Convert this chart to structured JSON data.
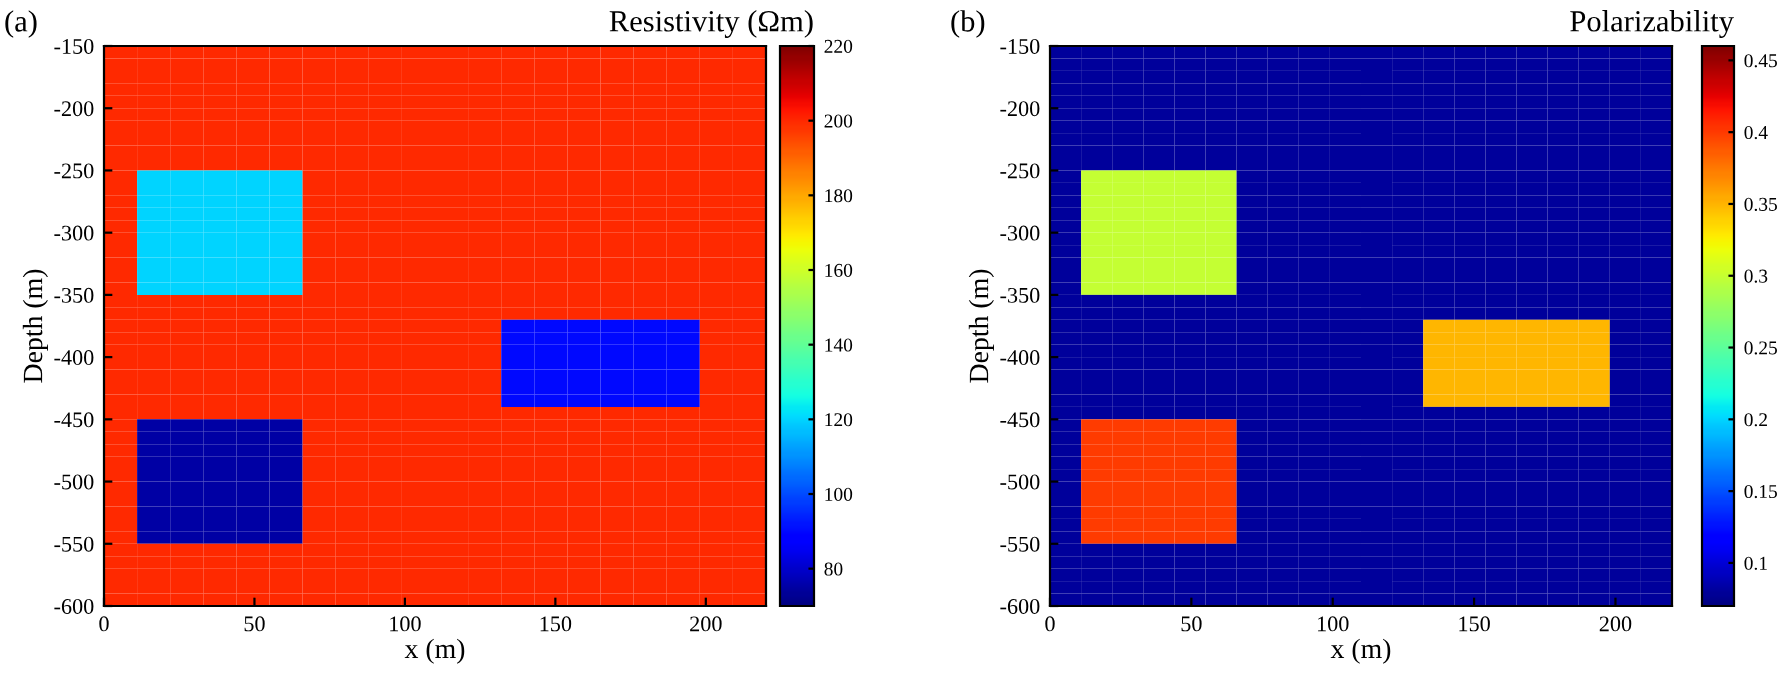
{
  "chart_data": [
    {
      "type": "heatmap",
      "title": "(a)",
      "xlabel": "x (m)",
      "ylabel": "Depth (m)",
      "clabel": "Resistivity (Ωm)",
      "x": [
        5.5,
        16.5,
        27.5,
        38.5,
        49.5,
        60.5,
        71.5,
        82.5,
        93.5,
        104.5,
        115.5,
        126.5,
        137.5,
        148.5,
        159.5,
        170.5,
        181.5,
        192.5,
        203.5,
        214.5
      ],
      "y": [
        -155,
        -165,
        -175,
        -185,
        -195,
        -205,
        -215,
        -225,
        -235,
        -245,
        -255,
        -265,
        -275,
        -285,
        -295,
        -305,
        -315,
        -325,
        -335,
        -345,
        -355,
        -365,
        -375,
        -385,
        -395,
        -405,
        -415,
        -425,
        -435,
        -445,
        -455,
        -465,
        -475,
        -485,
        -495,
        -505,
        -515,
        -525,
        -535,
        -545,
        -555,
        -565,
        -575,
        -585,
        -595
      ],
      "cells": [
        [
          200,
          200,
          200,
          200,
          200,
          200,
          200,
          200,
          200,
          200,
          200,
          200,
          200,
          200,
          200,
          200,
          200,
          200,
          200,
          200
        ],
        [
          200,
          200,
          200,
          200,
          200,
          200,
          200,
          200,
          200,
          200,
          200,
          200,
          200,
          200,
          200,
          200,
          200,
          200,
          200,
          200
        ],
        [
          200,
          200,
          200,
          200,
          200,
          200,
          200,
          200,
          200,
          200,
          200,
          200,
          200,
          200,
          200,
          200,
          200,
          200,
          200,
          200
        ],
        [
          200,
          200,
          200,
          200,
          200,
          200,
          200,
          200,
          200,
          200,
          200,
          200,
          200,
          200,
          200,
          200,
          200,
          200,
          200,
          200
        ],
        [
          200,
          200,
          200,
          200,
          200,
          200,
          200,
          200,
          200,
          200,
          200,
          200,
          200,
          200,
          200,
          200,
          200,
          200,
          200,
          200
        ],
        [
          200,
          200,
          200,
          200,
          200,
          200,
          200,
          200,
          200,
          200,
          200,
          200,
          200,
          200,
          200,
          200,
          200,
          200,
          200,
          200
        ],
        [
          200,
          200,
          200,
          200,
          200,
          200,
          200,
          200,
          200,
          200,
          200,
          200,
          200,
          200,
          200,
          200,
          200,
          200,
          200,
          200
        ],
        [
          200,
          200,
          200,
          200,
          200,
          200,
          200,
          200,
          200,
          200,
          200,
          200,
          200,
          200,
          200,
          200,
          200,
          200,
          200,
          200
        ],
        [
          200,
          200,
          200,
          200,
          200,
          200,
          200,
          200,
          200,
          200,
          200,
          200,
          200,
          200,
          200,
          200,
          200,
          200,
          200,
          200
        ],
        [
          200,
          200,
          200,
          200,
          200,
          200,
          200,
          200,
          200,
          200,
          200,
          200,
          200,
          200,
          200,
          200,
          200,
          200,
          200,
          200
        ],
        [
          200,
          120,
          120,
          120,
          120,
          120,
          200,
          200,
          200,
          200,
          200,
          200,
          200,
          200,
          200,
          200,
          200,
          200,
          200,
          200
        ],
        [
          200,
          120,
          120,
          120,
          120,
          120,
          200,
          200,
          200,
          200,
          200,
          200,
          200,
          200,
          200,
          200,
          200,
          200,
          200,
          200
        ],
        [
          200,
          120,
          120,
          120,
          120,
          120,
          200,
          200,
          200,
          200,
          200,
          200,
          200,
          200,
          200,
          200,
          200,
          200,
          200,
          200
        ],
        [
          200,
          120,
          120,
          120,
          120,
          120,
          200,
          200,
          200,
          200,
          200,
          200,
          200,
          200,
          200,
          200,
          200,
          200,
          200,
          200
        ],
        [
          200,
          120,
          120,
          120,
          120,
          120,
          200,
          200,
          200,
          200,
          200,
          200,
          200,
          200,
          200,
          200,
          200,
          200,
          200,
          200
        ],
        [
          200,
          120,
          120,
          120,
          120,
          120,
          200,
          200,
          200,
          200,
          200,
          200,
          200,
          200,
          200,
          200,
          200,
          200,
          200,
          200
        ],
        [
          200,
          120,
          120,
          120,
          120,
          120,
          200,
          200,
          200,
          200,
          200,
          200,
          200,
          200,
          200,
          200,
          200,
          200,
          200,
          200
        ],
        [
          200,
          120,
          120,
          120,
          120,
          120,
          200,
          200,
          200,
          200,
          200,
          200,
          200,
          200,
          200,
          200,
          200,
          200,
          200,
          200
        ],
        [
          200,
          120,
          120,
          120,
          120,
          120,
          200,
          200,
          200,
          200,
          200,
          200,
          200,
          200,
          200,
          200,
          200,
          200,
          200,
          200
        ],
        [
          200,
          120,
          120,
          120,
          120,
          120,
          200,
          200,
          200,
          200,
          200,
          200,
          200,
          200,
          200,
          200,
          200,
          200,
          200,
          200
        ],
        [
          200,
          200,
          200,
          200,
          200,
          200,
          200,
          200,
          200,
          200,
          200,
          200,
          200,
          200,
          200,
          200,
          200,
          200,
          200,
          200
        ],
        [
          200,
          200,
          200,
          200,
          200,
          200,
          200,
          200,
          200,
          200,
          200,
          200,
          200,
          200,
          200,
          200,
          200,
          200,
          200,
          200
        ],
        [
          200,
          200,
          200,
          200,
          200,
          200,
          200,
          200,
          200,
          200,
          200,
          200,
          90,
          90,
          90,
          90,
          90,
          90,
          200,
          200
        ],
        [
          200,
          200,
          200,
          200,
          200,
          200,
          200,
          200,
          200,
          200,
          200,
          200,
          90,
          90,
          90,
          90,
          90,
          90,
          200,
          200
        ],
        [
          200,
          200,
          200,
          200,
          200,
          200,
          200,
          200,
          200,
          200,
          200,
          200,
          90,
          90,
          90,
          90,
          90,
          90,
          200,
          200
        ],
        [
          200,
          200,
          200,
          200,
          200,
          200,
          200,
          200,
          200,
          200,
          200,
          200,
          90,
          90,
          90,
          90,
          90,
          90,
          200,
          200
        ],
        [
          200,
          200,
          200,
          200,
          200,
          200,
          200,
          200,
          200,
          200,
          200,
          200,
          90,
          90,
          90,
          90,
          90,
          90,
          200,
          200
        ],
        [
          200,
          200,
          200,
          200,
          200,
          200,
          200,
          200,
          200,
          200,
          200,
          200,
          90,
          90,
          90,
          90,
          90,
          90,
          200,
          200
        ],
        [
          200,
          200,
          200,
          200,
          200,
          200,
          200,
          200,
          200,
          200,
          200,
          200,
          90,
          90,
          90,
          90,
          90,
          90,
          200,
          200
        ],
        [
          200,
          200,
          200,
          200,
          200,
          200,
          200,
          200,
          200,
          200,
          200,
          200,
          200,
          200,
          200,
          200,
          200,
          200,
          200,
          200
        ],
        [
          200,
          75,
          75,
          75,
          75,
          75,
          200,
          200,
          200,
          200,
          200,
          200,
          200,
          200,
          200,
          200,
          200,
          200,
          200,
          200
        ],
        [
          200,
          75,
          75,
          75,
          75,
          75,
          200,
          200,
          200,
          200,
          200,
          200,
          200,
          200,
          200,
          200,
          200,
          200,
          200,
          200
        ],
        [
          200,
          75,
          75,
          75,
          75,
          75,
          200,
          200,
          200,
          200,
          200,
          200,
          200,
          200,
          200,
          200,
          200,
          200,
          200,
          200
        ],
        [
          200,
          75,
          75,
          75,
          75,
          75,
          200,
          200,
          200,
          200,
          200,
          200,
          200,
          200,
          200,
          200,
          200,
          200,
          200,
          200
        ],
        [
          200,
          75,
          75,
          75,
          75,
          75,
          200,
          200,
          200,
          200,
          200,
          200,
          200,
          200,
          200,
          200,
          200,
          200,
          200,
          200
        ],
        [
          200,
          75,
          75,
          75,
          75,
          75,
          200,
          200,
          200,
          200,
          200,
          200,
          200,
          200,
          200,
          200,
          200,
          200,
          200,
          200
        ],
        [
          200,
          75,
          75,
          75,
          75,
          75,
          200,
          200,
          200,
          200,
          200,
          200,
          200,
          200,
          200,
          200,
          200,
          200,
          200,
          200
        ],
        [
          200,
          75,
          75,
          75,
          75,
          75,
          200,
          200,
          200,
          200,
          200,
          200,
          200,
          200,
          200,
          200,
          200,
          200,
          200,
          200
        ],
        [
          200,
          75,
          75,
          75,
          75,
          75,
          200,
          200,
          200,
          200,
          200,
          200,
          200,
          200,
          200,
          200,
          200,
          200,
          200,
          200
        ],
        [
          200,
          75,
          75,
          75,
          75,
          75,
          200,
          200,
          200,
          200,
          200,
          200,
          200,
          200,
          200,
          200,
          200,
          200,
          200,
          200
        ],
        [
          200,
          200,
          200,
          200,
          200,
          200,
          200,
          200,
          200,
          200,
          200,
          200,
          200,
          200,
          200,
          200,
          200,
          200,
          200,
          200
        ],
        [
          200,
          200,
          200,
          200,
          200,
          200,
          200,
          200,
          200,
          200,
          200,
          200,
          200,
          200,
          200,
          200,
          200,
          200,
          200,
          200
        ],
        [
          200,
          200,
          200,
          200,
          200,
          200,
          200,
          200,
          200,
          200,
          200,
          200,
          200,
          200,
          200,
          200,
          200,
          200,
          200,
          200
        ],
        [
          200,
          200,
          200,
          200,
          200,
          200,
          200,
          200,
          200,
          200,
          200,
          200,
          200,
          200,
          200,
          200,
          200,
          200,
          200,
          200
        ],
        [
          200,
          200,
          200,
          200,
          200,
          200,
          200,
          200,
          200,
          200,
          200,
          200,
          200,
          200,
          200,
          200,
          200,
          200,
          200,
          200
        ]
      ],
      "clim": [
        70,
        220
      ],
      "cticks": [
        80,
        100,
        120,
        140,
        160,
        180,
        200,
        220
      ],
      "xlim": [
        0,
        220
      ],
      "ylim": [
        -600,
        -150
      ],
      "xticks": [
        0,
        50,
        100,
        150,
        200
      ],
      "yticks": [
        -600,
        -550,
        -500,
        -450,
        -400,
        -350,
        -300,
        -250,
        -200,
        -150
      ]
    },
    {
      "type": "heatmap",
      "title": "(b)",
      "xlabel": "x (m)",
      "ylabel": "Depth (m)",
      "clabel": "Polarizability",
      "x": [
        5.5,
        16.5,
        27.5,
        38.5,
        49.5,
        60.5,
        71.5,
        82.5,
        93.5,
        104.5,
        115.5,
        126.5,
        137.5,
        148.5,
        159.5,
        170.5,
        181.5,
        192.5,
        203.5,
        214.5
      ],
      "y": [
        -155,
        -165,
        -175,
        -185,
        -195,
        -205,
        -215,
        -225,
        -235,
        -245,
        -255,
        -265,
        -275,
        -285,
        -295,
        -305,
        -315,
        -325,
        -335,
        -345,
        -355,
        -365,
        -375,
        -385,
        -395,
        -405,
        -415,
        -425,
        -435,
        -445,
        -455,
        -465,
        -475,
        -485,
        -495,
        -505,
        -515,
        -525,
        -535,
        -545,
        -555,
        -565,
        -575,
        -585,
        -595
      ],
      "cells": [
        [
          0.08,
          0.08,
          0.08,
          0.08,
          0.08,
          0.08,
          0.08,
          0.08,
          0.08,
          0.08,
          0.08,
          0.08,
          0.08,
          0.08,
          0.08,
          0.08,
          0.08,
          0.08,
          0.08,
          0.08
        ],
        [
          0.08,
          0.08,
          0.08,
          0.08,
          0.08,
          0.08,
          0.08,
          0.08,
          0.08,
          0.08,
          0.08,
          0.08,
          0.08,
          0.08,
          0.08,
          0.08,
          0.08,
          0.08,
          0.08,
          0.08
        ],
        [
          0.08,
          0.08,
          0.08,
          0.08,
          0.08,
          0.08,
          0.08,
          0.08,
          0.08,
          0.08,
          0.08,
          0.08,
          0.08,
          0.08,
          0.08,
          0.08,
          0.08,
          0.08,
          0.08,
          0.08
        ],
        [
          0.08,
          0.08,
          0.08,
          0.08,
          0.08,
          0.08,
          0.08,
          0.08,
          0.08,
          0.08,
          0.08,
          0.08,
          0.08,
          0.08,
          0.08,
          0.08,
          0.08,
          0.08,
          0.08,
          0.08
        ],
        [
          0.08,
          0.08,
          0.08,
          0.08,
          0.08,
          0.08,
          0.08,
          0.08,
          0.08,
          0.08,
          0.08,
          0.08,
          0.08,
          0.08,
          0.08,
          0.08,
          0.08,
          0.08,
          0.08,
          0.08
        ],
        [
          0.08,
          0.08,
          0.08,
          0.08,
          0.08,
          0.08,
          0.08,
          0.08,
          0.08,
          0.08,
          0.08,
          0.08,
          0.08,
          0.08,
          0.08,
          0.08,
          0.08,
          0.08,
          0.08,
          0.08
        ],
        [
          0.08,
          0.08,
          0.08,
          0.08,
          0.08,
          0.08,
          0.08,
          0.08,
          0.08,
          0.08,
          0.08,
          0.08,
          0.08,
          0.08,
          0.08,
          0.08,
          0.08,
          0.08,
          0.08,
          0.08
        ],
        [
          0.08,
          0.08,
          0.08,
          0.08,
          0.08,
          0.08,
          0.08,
          0.08,
          0.08,
          0.08,
          0.08,
          0.08,
          0.08,
          0.08,
          0.08,
          0.08,
          0.08,
          0.08,
          0.08,
          0.08
        ],
        [
          0.08,
          0.08,
          0.08,
          0.08,
          0.08,
          0.08,
          0.08,
          0.08,
          0.08,
          0.08,
          0.08,
          0.08,
          0.08,
          0.08,
          0.08,
          0.08,
          0.08,
          0.08,
          0.08,
          0.08
        ],
        [
          0.08,
          0.08,
          0.08,
          0.08,
          0.08,
          0.08,
          0.08,
          0.08,
          0.08,
          0.08,
          0.08,
          0.08,
          0.08,
          0.08,
          0.08,
          0.08,
          0.08,
          0.08,
          0.08,
          0.08
        ],
        [
          0.08,
          0.3,
          0.3,
          0.3,
          0.3,
          0.3,
          0.08,
          0.08,
          0.08,
          0.08,
          0.08,
          0.08,
          0.08,
          0.08,
          0.08,
          0.08,
          0.08,
          0.08,
          0.08,
          0.08
        ],
        [
          0.08,
          0.3,
          0.3,
          0.3,
          0.3,
          0.3,
          0.08,
          0.08,
          0.08,
          0.08,
          0.08,
          0.08,
          0.08,
          0.08,
          0.08,
          0.08,
          0.08,
          0.08,
          0.08,
          0.08
        ],
        [
          0.08,
          0.3,
          0.3,
          0.3,
          0.3,
          0.3,
          0.08,
          0.08,
          0.08,
          0.08,
          0.08,
          0.08,
          0.08,
          0.08,
          0.08,
          0.08,
          0.08,
          0.08,
          0.08,
          0.08
        ],
        [
          0.08,
          0.3,
          0.3,
          0.3,
          0.3,
          0.3,
          0.08,
          0.08,
          0.08,
          0.08,
          0.08,
          0.08,
          0.08,
          0.08,
          0.08,
          0.08,
          0.08,
          0.08,
          0.08,
          0.08
        ],
        [
          0.08,
          0.3,
          0.3,
          0.3,
          0.3,
          0.3,
          0.08,
          0.08,
          0.08,
          0.08,
          0.08,
          0.08,
          0.08,
          0.08,
          0.08,
          0.08,
          0.08,
          0.08,
          0.08,
          0.08
        ],
        [
          0.08,
          0.3,
          0.3,
          0.3,
          0.3,
          0.3,
          0.08,
          0.08,
          0.08,
          0.08,
          0.08,
          0.08,
          0.08,
          0.08,
          0.08,
          0.08,
          0.08,
          0.08,
          0.08,
          0.08
        ],
        [
          0.08,
          0.3,
          0.3,
          0.3,
          0.3,
          0.3,
          0.08,
          0.08,
          0.08,
          0.08,
          0.08,
          0.08,
          0.08,
          0.08,
          0.08,
          0.08,
          0.08,
          0.08,
          0.08,
          0.08
        ],
        [
          0.08,
          0.3,
          0.3,
          0.3,
          0.3,
          0.3,
          0.08,
          0.08,
          0.08,
          0.08,
          0.08,
          0.08,
          0.08,
          0.08,
          0.08,
          0.08,
          0.08,
          0.08,
          0.08,
          0.08
        ],
        [
          0.08,
          0.3,
          0.3,
          0.3,
          0.3,
          0.3,
          0.08,
          0.08,
          0.08,
          0.08,
          0.08,
          0.08,
          0.08,
          0.08,
          0.08,
          0.08,
          0.08,
          0.08,
          0.08,
          0.08
        ],
        [
          0.08,
          0.3,
          0.3,
          0.3,
          0.3,
          0.3,
          0.08,
          0.08,
          0.08,
          0.08,
          0.08,
          0.08,
          0.08,
          0.08,
          0.08,
          0.08,
          0.08,
          0.08,
          0.08,
          0.08
        ],
        [
          0.08,
          0.08,
          0.08,
          0.08,
          0.08,
          0.08,
          0.08,
          0.08,
          0.08,
          0.08,
          0.08,
          0.08,
          0.08,
          0.08,
          0.08,
          0.08,
          0.08,
          0.08,
          0.08,
          0.08
        ],
        [
          0.08,
          0.08,
          0.08,
          0.08,
          0.08,
          0.08,
          0.08,
          0.08,
          0.08,
          0.08,
          0.08,
          0.08,
          0.08,
          0.08,
          0.08,
          0.08,
          0.08,
          0.08,
          0.08,
          0.08
        ],
        [
          0.08,
          0.08,
          0.08,
          0.08,
          0.08,
          0.08,
          0.08,
          0.08,
          0.08,
          0.08,
          0.08,
          0.08,
          0.35,
          0.35,
          0.35,
          0.35,
          0.35,
          0.35,
          0.08,
          0.08
        ],
        [
          0.08,
          0.08,
          0.08,
          0.08,
          0.08,
          0.08,
          0.08,
          0.08,
          0.08,
          0.08,
          0.08,
          0.08,
          0.35,
          0.35,
          0.35,
          0.35,
          0.35,
          0.35,
          0.08,
          0.08
        ],
        [
          0.08,
          0.08,
          0.08,
          0.08,
          0.08,
          0.08,
          0.08,
          0.08,
          0.08,
          0.08,
          0.08,
          0.08,
          0.35,
          0.35,
          0.35,
          0.35,
          0.35,
          0.35,
          0.08,
          0.08
        ],
        [
          0.08,
          0.08,
          0.08,
          0.08,
          0.08,
          0.08,
          0.08,
          0.08,
          0.08,
          0.08,
          0.08,
          0.08,
          0.35,
          0.35,
          0.35,
          0.35,
          0.35,
          0.35,
          0.08,
          0.08
        ],
        [
          0.08,
          0.08,
          0.08,
          0.08,
          0.08,
          0.08,
          0.08,
          0.08,
          0.08,
          0.08,
          0.08,
          0.08,
          0.35,
          0.35,
          0.35,
          0.35,
          0.35,
          0.35,
          0.08,
          0.08
        ],
        [
          0.08,
          0.08,
          0.08,
          0.08,
          0.08,
          0.08,
          0.08,
          0.08,
          0.08,
          0.08,
          0.08,
          0.08,
          0.35,
          0.35,
          0.35,
          0.35,
          0.35,
          0.35,
          0.08,
          0.08
        ],
        [
          0.08,
          0.08,
          0.08,
          0.08,
          0.08,
          0.08,
          0.08,
          0.08,
          0.08,
          0.08,
          0.08,
          0.08,
          0.35,
          0.35,
          0.35,
          0.35,
          0.35,
          0.35,
          0.08,
          0.08
        ],
        [
          0.08,
          0.08,
          0.08,
          0.08,
          0.08,
          0.08,
          0.08,
          0.08,
          0.08,
          0.08,
          0.08,
          0.08,
          0.08,
          0.08,
          0.08,
          0.08,
          0.08,
          0.08,
          0.08,
          0.08
        ],
        [
          0.08,
          0.4,
          0.4,
          0.4,
          0.4,
          0.4,
          0.08,
          0.08,
          0.08,
          0.08,
          0.08,
          0.08,
          0.08,
          0.08,
          0.08,
          0.08,
          0.08,
          0.08,
          0.08,
          0.08
        ],
        [
          0.08,
          0.4,
          0.4,
          0.4,
          0.4,
          0.4,
          0.08,
          0.08,
          0.08,
          0.08,
          0.08,
          0.08,
          0.08,
          0.08,
          0.08,
          0.08,
          0.08,
          0.08,
          0.08,
          0.08
        ],
        [
          0.08,
          0.4,
          0.4,
          0.4,
          0.4,
          0.4,
          0.08,
          0.08,
          0.08,
          0.08,
          0.08,
          0.08,
          0.08,
          0.08,
          0.08,
          0.08,
          0.08,
          0.08,
          0.08,
          0.08
        ],
        [
          0.08,
          0.4,
          0.4,
          0.4,
          0.4,
          0.4,
          0.08,
          0.08,
          0.08,
          0.08,
          0.08,
          0.08,
          0.08,
          0.08,
          0.08,
          0.08,
          0.08,
          0.08,
          0.08,
          0.08
        ],
        [
          0.08,
          0.4,
          0.4,
          0.4,
          0.4,
          0.4,
          0.08,
          0.08,
          0.08,
          0.08,
          0.08,
          0.08,
          0.08,
          0.08,
          0.08,
          0.08,
          0.08,
          0.08,
          0.08,
          0.08
        ],
        [
          0.08,
          0.4,
          0.4,
          0.4,
          0.4,
          0.4,
          0.08,
          0.08,
          0.08,
          0.08,
          0.08,
          0.08,
          0.08,
          0.08,
          0.08,
          0.08,
          0.08,
          0.08,
          0.08,
          0.08
        ],
        [
          0.08,
          0.4,
          0.4,
          0.4,
          0.4,
          0.4,
          0.08,
          0.08,
          0.08,
          0.08,
          0.08,
          0.08,
          0.08,
          0.08,
          0.08,
          0.08,
          0.08,
          0.08,
          0.08,
          0.08
        ],
        [
          0.08,
          0.4,
          0.4,
          0.4,
          0.4,
          0.4,
          0.08,
          0.08,
          0.08,
          0.08,
          0.08,
          0.08,
          0.08,
          0.08,
          0.08,
          0.08,
          0.08,
          0.08,
          0.08,
          0.08
        ],
        [
          0.08,
          0.4,
          0.4,
          0.4,
          0.4,
          0.4,
          0.08,
          0.08,
          0.08,
          0.08,
          0.08,
          0.08,
          0.08,
          0.08,
          0.08,
          0.08,
          0.08,
          0.08,
          0.08,
          0.08
        ],
        [
          0.08,
          0.4,
          0.4,
          0.4,
          0.4,
          0.4,
          0.08,
          0.08,
          0.08,
          0.08,
          0.08,
          0.08,
          0.08,
          0.08,
          0.08,
          0.08,
          0.08,
          0.08,
          0.08,
          0.08
        ],
        [
          0.08,
          0.08,
          0.08,
          0.08,
          0.08,
          0.08,
          0.08,
          0.08,
          0.08,
          0.08,
          0.08,
          0.08,
          0.08,
          0.08,
          0.08,
          0.08,
          0.08,
          0.08,
          0.08,
          0.08
        ],
        [
          0.08,
          0.08,
          0.08,
          0.08,
          0.08,
          0.08,
          0.08,
          0.08,
          0.08,
          0.08,
          0.08,
          0.08,
          0.08,
          0.08,
          0.08,
          0.08,
          0.08,
          0.08,
          0.08,
          0.08
        ],
        [
          0.08,
          0.08,
          0.08,
          0.08,
          0.08,
          0.08,
          0.08,
          0.08,
          0.08,
          0.08,
          0.08,
          0.08,
          0.08,
          0.08,
          0.08,
          0.08,
          0.08,
          0.08,
          0.08,
          0.08
        ],
        [
          0.08,
          0.08,
          0.08,
          0.08,
          0.08,
          0.08,
          0.08,
          0.08,
          0.08,
          0.08,
          0.08,
          0.08,
          0.08,
          0.08,
          0.08,
          0.08,
          0.08,
          0.08,
          0.08,
          0.08
        ],
        [
          0.08,
          0.08,
          0.08,
          0.08,
          0.08,
          0.08,
          0.08,
          0.08,
          0.08,
          0.08,
          0.08,
          0.08,
          0.08,
          0.08,
          0.08,
          0.08,
          0.08,
          0.08,
          0.08,
          0.08
        ]
      ],
      "clim": [
        0.07,
        0.46
      ],
      "cticks": [
        0.1,
        0.15,
        0.2,
        0.25,
        0.3,
        0.35,
        0.4,
        0.45
      ],
      "xlim": [
        0,
        220
      ],
      "ylim": [
        -600,
        -150
      ],
      "xticks": [
        0,
        50,
        100,
        150,
        200
      ],
      "yticks": [
        -600,
        -550,
        -500,
        -450,
        -400,
        -350,
        -300,
        -250,
        -200,
        -150
      ]
    }
  ]
}
